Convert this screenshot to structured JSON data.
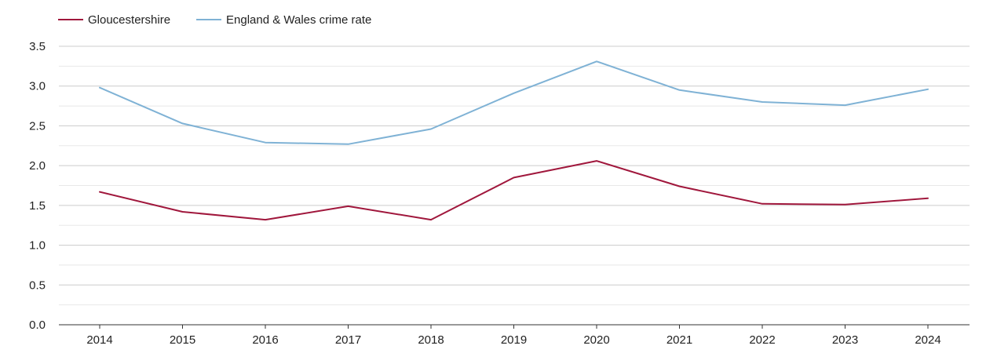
{
  "chart_data": {
    "type": "line",
    "title": "",
    "xlabel": "",
    "ylabel": "",
    "x": [
      "2014",
      "2015",
      "2016",
      "2017",
      "2018",
      "2019",
      "2020",
      "2021",
      "2022",
      "2023",
      "2024"
    ],
    "ylim": [
      0,
      3.5
    ],
    "yticks": [
      "0.0",
      "0.5",
      "1.0",
      "1.5",
      "2.0",
      "2.5",
      "3.0",
      "3.5"
    ],
    "grid": true,
    "legend_position": "top-left",
    "series": [
      {
        "name": "Gloucestershire",
        "color": "#a0173c",
        "values": [
          1.67,
          1.42,
          1.32,
          1.49,
          1.32,
          1.85,
          2.06,
          1.74,
          1.52,
          1.51,
          1.59
        ]
      },
      {
        "name": "England & Wales crime rate",
        "color": "#7fb2d5",
        "values": [
          2.98,
          2.53,
          2.29,
          2.27,
          2.46,
          2.91,
          3.31,
          2.95,
          2.8,
          2.76,
          2.96
        ]
      }
    ]
  }
}
